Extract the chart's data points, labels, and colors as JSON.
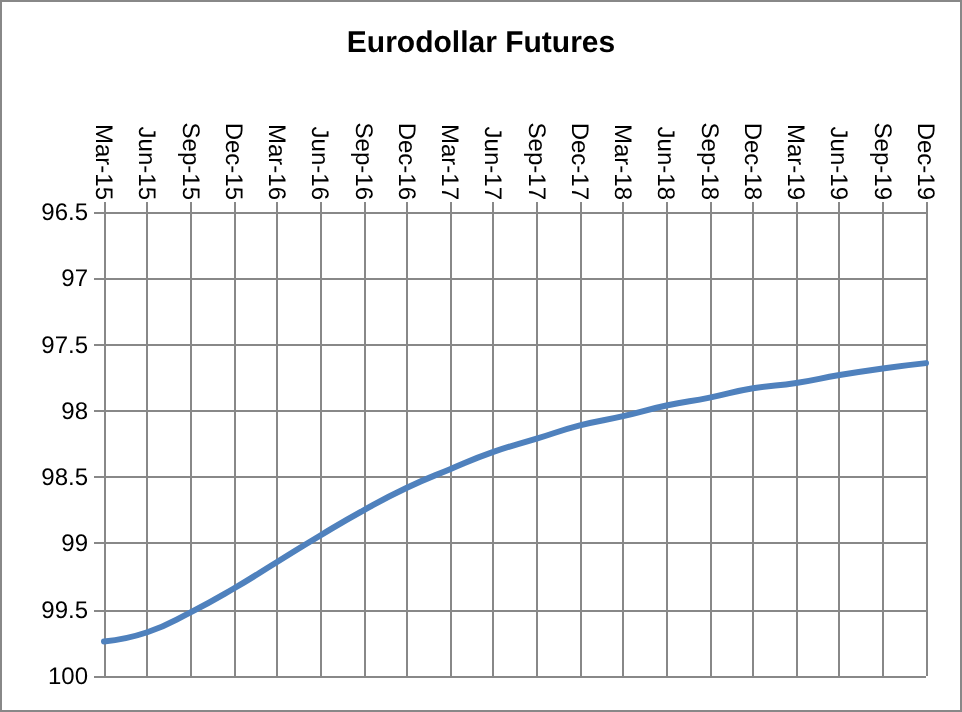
{
  "chart_data": {
    "type": "line",
    "title": "Eurodollar Futures",
    "categories": [
      "Mar-15",
      "Jun-15",
      "Sep-15",
      "Dec-15",
      "Mar-16",
      "Jun-16",
      "Sep-16",
      "Dec-16",
      "Mar-17",
      "Jun-17",
      "Sep-17",
      "Dec-17",
      "Mar-18",
      "Jun-18",
      "Sep-18",
      "Dec-18",
      "Mar-19",
      "Jun-19",
      "Sep-19",
      "Dec-19"
    ],
    "series": [
      {
        "color": "#4f81bd",
        "values": [
          99.74,
          99.67,
          99.52,
          99.34,
          99.14,
          98.94,
          98.75,
          98.58,
          98.44,
          98.31,
          98.21,
          98.11,
          98.04,
          97.96,
          97.9,
          97.83,
          97.79,
          97.73,
          97.68,
          97.64
        ]
      }
    ],
    "ylim": [
      100,
      96.5
    ],
    "yticks": [
      100,
      99.5,
      99,
      98.5,
      98,
      97.5,
      97,
      96.5
    ],
    "grid": true,
    "marker": "none",
    "line_style": "solid"
  }
}
